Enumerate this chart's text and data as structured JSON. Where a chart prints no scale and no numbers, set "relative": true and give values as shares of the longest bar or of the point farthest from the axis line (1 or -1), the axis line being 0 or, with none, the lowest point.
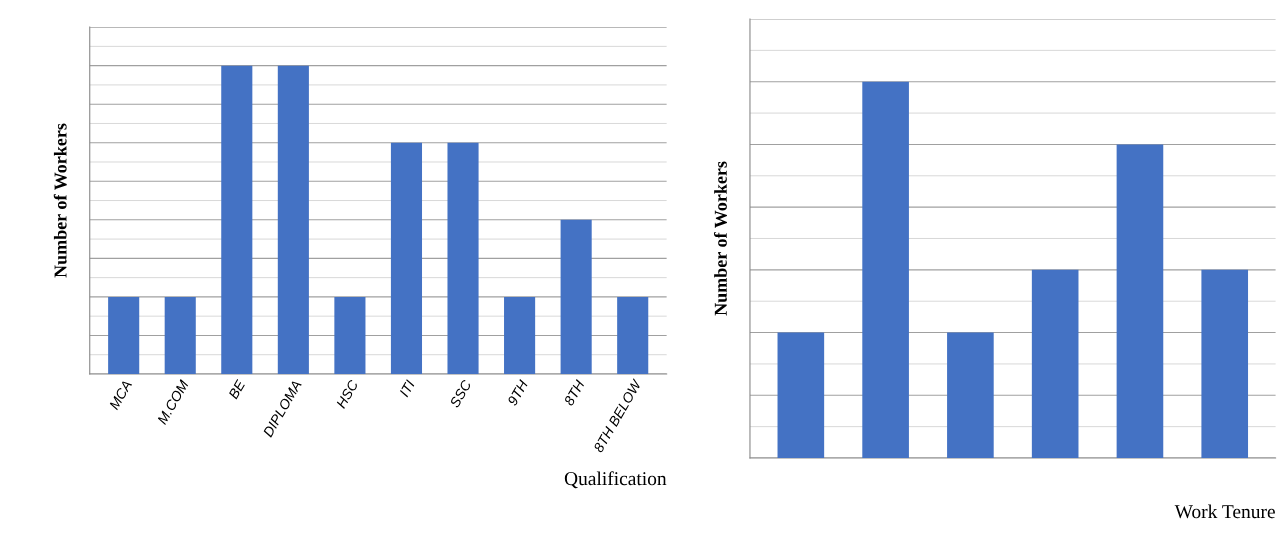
{
  "chart_data": [
    {
      "type": "bar",
      "relative": true,
      "xlabel": "Qualification",
      "ylabel": "Number of Workers",
      "categories": [
        "MCA",
        "M.COM",
        "BE",
        "DIPLOMA",
        "HSC",
        "ITI",
        "SSC",
        "9TH",
        "8TH",
        "8TH BELOW"
      ],
      "values": [
        0.25,
        0.25,
        1,
        1,
        0.25,
        0.75,
        0.75,
        0.25,
        0.5,
        0.25
      ],
      "color": "#4472c4",
      "grid": "y"
    },
    {
      "type": "bar",
      "relative": true,
      "xlabel": "Work Tenure",
      "ylabel": "Number of Workers",
      "categories": [
        null,
        null,
        null,
        null,
        null,
        null
      ],
      "values": [
        0.3333,
        1,
        0.3333,
        0.5,
        0.8333,
        0.5
      ],
      "color": "#4472c4",
      "grid": "y"
    }
  ]
}
